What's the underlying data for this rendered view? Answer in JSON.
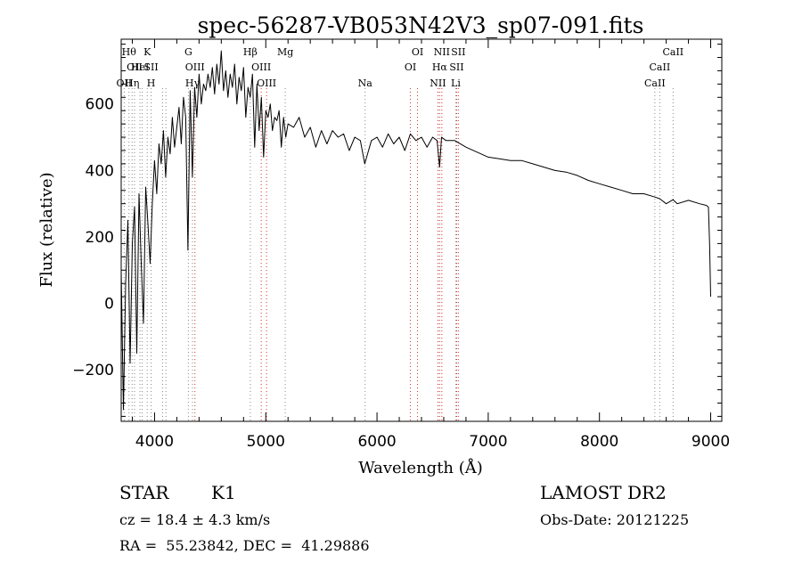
{
  "chart_data": {
    "type": "line",
    "title": "spec-56287-VB053N42V3_sp07-091.fits",
    "xlabel": "Wavelength (Å)",
    "ylabel": "Flux (relative)",
    "xlim": [
      3700,
      9100
    ],
    "ylim": [
      -355,
      795
    ],
    "xticks": [
      4000,
      5000,
      6000,
      7000,
      8000,
      9000
    ],
    "yticks": [
      -200,
      0,
      200,
      400,
      600
    ],
    "grid": false,
    "series": [
      {
        "color": "#000000",
        "x": [
          3700,
          3720,
          3740,
          3760,
          3780,
          3800,
          3820,
          3840,
          3860,
          3880,
          3900,
          3920,
          3940,
          3960,
          3980,
          4000,
          4020,
          4040,
          4060,
          4080,
          4100,
          4120,
          4140,
          4160,
          4180,
          4200,
          4220,
          4240,
          4260,
          4280,
          4300,
          4320,
          4340,
          4360,
          4380,
          4400,
          4420,
          4440,
          4460,
          4480,
          4500,
          4520,
          4540,
          4560,
          4580,
          4600,
          4620,
          4640,
          4660,
          4680,
          4700,
          4720,
          4740,
          4760,
          4780,
          4800,
          4820,
          4840,
          4860,
          4880,
          4900,
          4920,
          4940,
          4960,
          4980,
          5000,
          5020,
          5040,
          5060,
          5080,
          5100,
          5120,
          5140,
          5160,
          5180,
          5200,
          5250,
          5300,
          5350,
          5400,
          5450,
          5500,
          5550,
          5600,
          5650,
          5700,
          5750,
          5800,
          5850,
          5890,
          5950,
          6000,
          6050,
          6100,
          6150,
          6200,
          6250,
          6300,
          6350,
          6400,
          6450,
          6500,
          6540,
          6563,
          6580,
          6620,
          6700,
          6800,
          6900,
          7000,
          7100,
          7200,
          7300,
          7400,
          7500,
          7600,
          7700,
          7800,
          7900,
          8000,
          8100,
          8200,
          8300,
          8400,
          8498,
          8542,
          8600,
          8662,
          8700,
          8800,
          8900,
          8960,
          8980,
          8990,
          9000
        ],
        "y": [
          100,
          -320,
          60,
          250,
          -180,
          180,
          290,
          -150,
          330,
          120,
          -60,
          350,
          240,
          120,
          300,
          430,
          330,
          480,
          420,
          520,
          380,
          500,
          450,
          560,
          470,
          530,
          590,
          480,
          620,
          560,
          160,
          640,
          380,
          650,
          560,
          690,
          600,
          660,
          640,
          690,
          650,
          710,
          630,
          720,
          660,
          760,
          640,
          700,
          620,
          690,
          650,
          720,
          600,
          680,
          640,
          710,
          560,
          650,
          620,
          690,
          470,
          660,
          520,
          620,
          440,
          580,
          560,
          600,
          520,
          560,
          550,
          580,
          470,
          560,
          500,
          540,
          530,
          560,
          500,
          530,
          470,
          520,
          480,
          520,
          500,
          510,
          460,
          500,
          490,
          420,
          490,
          500,
          470,
          510,
          480,
          500,
          460,
          510,
          490,
          500,
          470,
          500,
          490,
          410,
          500,
          490,
          490,
          470,
          455,
          440,
          435,
          430,
          430,
          420,
          410,
          400,
          395,
          385,
          370,
          360,
          350,
          340,
          330,
          330,
          320,
          315,
          300,
          312,
          300,
          310,
          300,
          295,
          290,
          180,
          20
        ]
      }
    ],
    "lines": [
      {
        "x": 3727,
        "color": "#888888",
        "labels": [
          {
            "text": "OII",
            "row": 2
          }
        ]
      },
      {
        "x": 3770,
        "color": "#888888",
        "labels": [
          {
            "text": "Hθ",
            "row": 0
          }
        ]
      },
      {
        "x": 3798,
        "color": "#888888",
        "labels": [
          {
            "text": "Hη",
            "row": 2
          }
        ]
      },
      {
        "x": 3820,
        "color": "#888888",
        "labels": [
          {
            "text": "OII",
            "row": 1
          }
        ]
      },
      {
        "x": 3869,
        "color": "#888888",
        "labels": [
          {
            "text": "HeI",
            "row": 1
          }
        ]
      },
      {
        "x": 3889,
        "color": "#888888",
        "labels": []
      },
      {
        "x": 3934,
        "color": "#888888",
        "labels": [
          {
            "text": "K",
            "row": 0
          }
        ]
      },
      {
        "x": 3969,
        "color": "#888888",
        "labels": [
          {
            "text": "H",
            "row": 2
          },
          {
            "text": "SII",
            "row": 1
          }
        ]
      },
      {
        "x": 4072,
        "color": "#888888",
        "labels": []
      },
      {
        "x": 4102,
        "color": "#888888",
        "labels": []
      },
      {
        "x": 4304,
        "color": "#888888",
        "labels": [
          {
            "text": "G",
            "row": 0
          }
        ]
      },
      {
        "x": 4341,
        "color": "#888888",
        "labels": [
          {
            "text": "Hγ",
            "row": 2
          }
        ]
      },
      {
        "x": 4363,
        "color": "#cc3333",
        "labels": [
          {
            "text": "OIII",
            "row": 1
          }
        ]
      },
      {
        "x": 4861,
        "color": "#888888",
        "labels": [
          {
            "text": "Hβ",
            "row": 0
          }
        ]
      },
      {
        "x": 4959,
        "color": "#cc3333",
        "labels": [
          {
            "text": "OIII",
            "row": 1
          }
        ]
      },
      {
        "x": 5007,
        "color": "#cc3333",
        "labels": [
          {
            "text": "OIII",
            "row": 2
          }
        ]
      },
      {
        "x": 5175,
        "color": "#888888",
        "labels": [
          {
            "text": "Mg",
            "row": 0
          }
        ]
      },
      {
        "x": 5893,
        "color": "#888888",
        "labels": [
          {
            "text": "Na",
            "row": 2
          }
        ]
      },
      {
        "x": 6300,
        "color": "#cc3333",
        "labels": [
          {
            "text": "OI",
            "row": 1
          }
        ]
      },
      {
        "x": 6364,
        "color": "#cc3333",
        "labels": [
          {
            "text": "OI",
            "row": 0
          }
        ]
      },
      {
        "x": 6548,
        "color": "#cc3333",
        "labels": [
          {
            "text": "NII",
            "row": 2
          }
        ]
      },
      {
        "x": 6563,
        "color": "#cc3333",
        "labels": [
          {
            "text": "Hα",
            "row": 1
          }
        ]
      },
      {
        "x": 6583,
        "color": "#cc3333",
        "labels": [
          {
            "text": "NII",
            "row": 0
          }
        ]
      },
      {
        "x": 6708,
        "color": "#888888",
        "labels": [
          {
            "text": "Li",
            "row": 2
          }
        ]
      },
      {
        "x": 6716,
        "color": "#cc3333",
        "labels": [
          {
            "text": "SII",
            "row": 1
          }
        ]
      },
      {
        "x": 6731,
        "color": "#cc3333",
        "labels": [
          {
            "text": "SII",
            "row": 0
          }
        ]
      },
      {
        "x": 8498,
        "color": "#888888",
        "labels": [
          {
            "text": "CaII",
            "row": 2
          }
        ]
      },
      {
        "x": 8542,
        "color": "#888888",
        "labels": [
          {
            "text": "CaII",
            "row": 1
          }
        ]
      },
      {
        "x": 8662,
        "color": "#888888",
        "labels": [
          {
            "text": "CaII",
            "row": 0
          }
        ]
      }
    ]
  },
  "info": {
    "object_class": "STAR",
    "subclass": "K1",
    "survey": "LAMOST DR2",
    "redshift": "cz = 18.4 ± 4.3 km/s",
    "obs_date": "Obs-Date: 20121225",
    "coords": "RA =  55.23842, DEC =  41.29886"
  }
}
